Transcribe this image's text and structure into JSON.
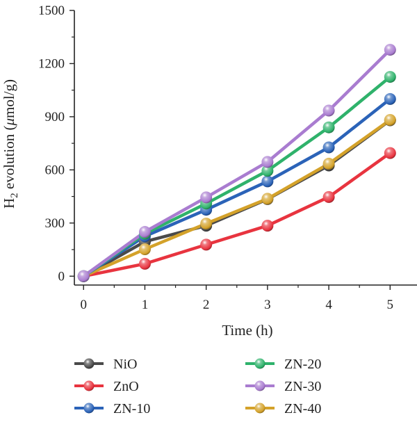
{
  "chart_data": {
    "type": "line",
    "x": [
      0,
      1,
      2,
      3,
      4,
      5
    ],
    "xticks": [
      "0",
      "1",
      "2",
      "3",
      "4",
      "5"
    ],
    "yticks": [
      "0",
      "300",
      "600",
      "900",
      "1200",
      "1500"
    ],
    "xlim": [
      -0.15,
      5.45
    ],
    "ylim": [
      -50,
      1500
    ],
    "xlabel": "Time (h)",
    "ylabel_main": "H",
    "ylabel_sub": "2",
    "ylabel_rest": " evolution (",
    "ylabel_mu": "μ",
    "ylabel_unit": "mol/g)",
    "grid": false,
    "legend_position": "bottom, two columns",
    "series": [
      {
        "name": "NiO",
        "color": "#4a4a4a",
        "values": [
          0,
          195,
          285,
          435,
          625,
          880
        ]
      },
      {
        "name": "ZnO",
        "color": "#e8343f",
        "values": [
          0,
          70,
          178,
          285,
          447,
          695
        ]
      },
      {
        "name": "ZN-10",
        "color": "#2b63b8",
        "values": [
          0,
          225,
          375,
          535,
          727,
          1000
        ]
      },
      {
        "name": "ZN-20",
        "color": "#2fb26b",
        "values": [
          0,
          240,
          410,
          595,
          840,
          1125
        ]
      },
      {
        "name": "ZN-30",
        "color": "#a97cd0",
        "values": [
          0,
          250,
          445,
          645,
          935,
          1278
        ]
      },
      {
        "name": "ZN-40",
        "color": "#d4a22a",
        "values": [
          0,
          152,
          297,
          437,
          635,
          882
        ]
      }
    ]
  }
}
